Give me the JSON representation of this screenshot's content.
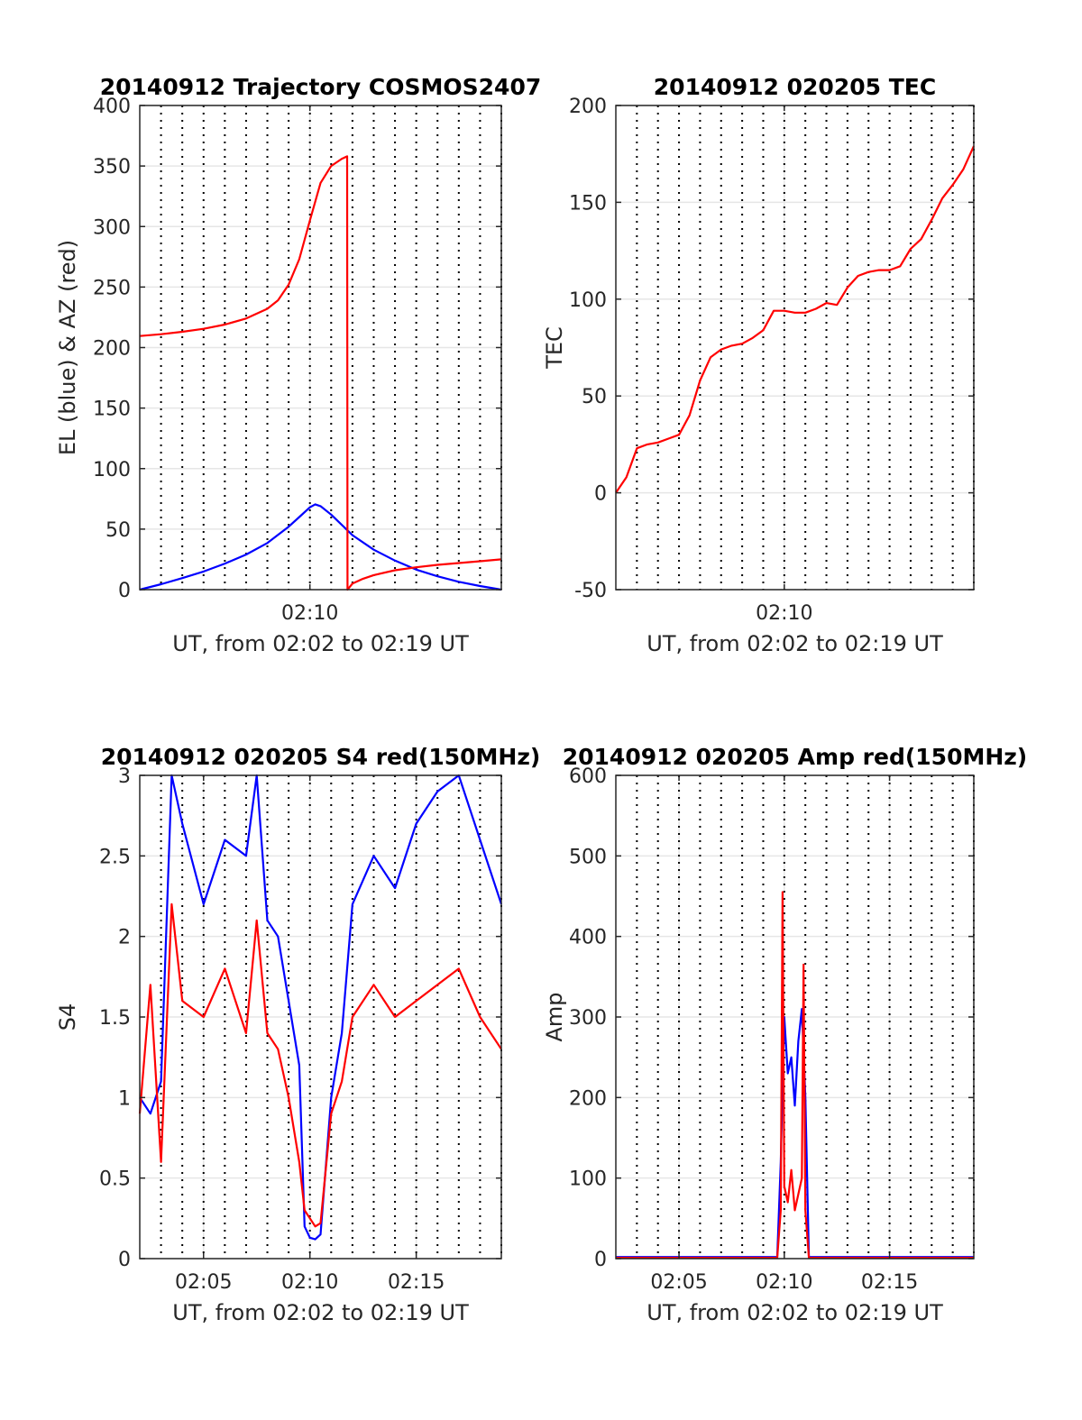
{
  "colors": {
    "el": "#0000ff",
    "az": "#ff0000",
    "s4_red": "#ff0000",
    "s4_blue": "#0000ff",
    "tec": "#ff0000",
    "amp_red": "#ff0000",
    "amp_blue": "#0000ff"
  },
  "chart_data": [
    {
      "id": "trajectory",
      "type": "line",
      "title": "20140912 Trajectory COSMOS2407",
      "xlabel": "UT, from 02:02 to 02:19 UT",
      "ylabel": "EL (blue) & AZ (red)",
      "xlim": [
        "02:02",
        "02:19"
      ],
      "ylim": [
        0,
        400
      ],
      "xticks": [
        "02:10"
      ],
      "yticks": [
        0,
        50,
        100,
        150,
        200,
        250,
        300,
        350,
        400
      ],
      "grid": true,
      "series": [
        {
          "color": "#0000ff",
          "x": [
            "02:02",
            "02:03",
            "02:04",
            "02:05",
            "02:06",
            "02:07",
            "02:08",
            "02:09",
            "02:09:30",
            "02:10",
            "02:10:15",
            "02:10:30",
            "02:11",
            "02:11:30",
            "02:12",
            "02:13",
            "02:14",
            "02:15",
            "02:16",
            "02:17",
            "02:18",
            "02:19"
          ],
          "y": [
            0,
            4.5,
            9.5,
            15,
            21.5,
            29,
            38.5,
            52,
            60,
            68,
            70.5,
            69,
            62,
            53.5,
            45,
            33,
            24,
            16.5,
            11,
            6.5,
            3,
            0
          ]
        },
        {
          "color": "#ff0000",
          "x": [
            "02:02",
            "02:03",
            "02:04",
            "02:05",
            "02:06",
            "02:07",
            "02:08",
            "02:08:30",
            "02:09",
            "02:09:30",
            "02:10",
            "02:10:30",
            "02:11",
            "02:11:30",
            "02:11:45",
            "02:11:46",
            "02:12",
            "02:12:30",
            "02:13",
            "02:14",
            "02:15",
            "02:16",
            "02:17",
            "02:18",
            "02:19"
          ],
          "y": [
            209.5,
            211,
            213,
            215.5,
            219,
            224,
            232,
            239,
            252,
            273,
            305,
            336,
            350,
            356,
            358,
            0,
            5,
            9,
            12,
            16,
            18.5,
            20.5,
            22,
            23.5,
            25
          ]
        }
      ]
    },
    {
      "id": "tec",
      "type": "line",
      "title": "20140912 020205 TEC",
      "xlabel": "UT, from 02:02 to 02:19 UT",
      "ylabel": "TEC",
      "xlim": [
        "02:02",
        "02:19"
      ],
      "ylim": [
        -50,
        200
      ],
      "xticks": [
        "02:10"
      ],
      "yticks": [
        -50,
        0,
        50,
        100,
        150,
        200
      ],
      "grid": true,
      "series": [
        {
          "color": "#ff0000",
          "x": [
            "02:02",
            "02:02:30",
            "02:03",
            "02:03:30",
            "02:04",
            "02:04:30",
            "02:05",
            "02:05:30",
            "02:06",
            "02:06:30",
            "02:07",
            "02:07:30",
            "02:08",
            "02:08:30",
            "02:09",
            "02:09:30",
            "02:10",
            "02:10:30",
            "02:11",
            "02:11:30",
            "02:12",
            "02:12:30",
            "02:13",
            "02:13:30",
            "02:14",
            "02:14:30",
            "02:15",
            "02:15:30",
            "02:16",
            "02:16:30",
            "02:17",
            "02:17:30",
            "02:18",
            "02:18:30",
            "02:19"
          ],
          "y": [
            0,
            8,
            23,
            25,
            26,
            28,
            30,
            40,
            58,
            70,
            74,
            76,
            77,
            80,
            84,
            94,
            94,
            93,
            93,
            95,
            98,
            97,
            106,
            112,
            114,
            115,
            115,
            117,
            126,
            131,
            141,
            152,
            159,
            167,
            179
          ]
        }
      ]
    },
    {
      "id": "s4",
      "type": "line",
      "title": "20140912 020205 S4 red(150MHz)",
      "xlabel": "UT, from 02:02 to 02:19 UT",
      "ylabel": "S4",
      "xlim": [
        "02:02",
        "02:19"
      ],
      "ylim": [
        0,
        3
      ],
      "xticks": [
        "02:05",
        "02:10",
        "02:15"
      ],
      "yticks": [
        0,
        0.5,
        1,
        1.5,
        2,
        2.5,
        3
      ],
      "grid": true,
      "series": [
        {
          "color": "#0000ff",
          "x": [
            "02:02",
            "02:02:30",
            "02:03",
            "02:03:30",
            "02:04",
            "02:05",
            "02:06",
            "02:07",
            "02:07:30",
            "02:08",
            "02:08:30",
            "02:09",
            "02:09:30",
            "02:09:45",
            "02:10",
            "02:10:15",
            "02:10:30",
            "02:11",
            "02:11:30",
            "02:12",
            "02:13",
            "02:14",
            "02:15",
            "02:16",
            "02:17",
            "02:18",
            "02:19"
          ],
          "y": [
            1.0,
            0.9,
            1.1,
            3.0,
            2.7,
            2.2,
            2.6,
            2.5,
            3.0,
            2.1,
            2.0,
            1.6,
            1.2,
            0.2,
            0.13,
            0.12,
            0.15,
            1.0,
            1.4,
            2.2,
            2.5,
            2.3,
            2.7,
            2.9,
            3.0,
            2.6,
            2.2
          ]
        },
        {
          "color": "#ff0000",
          "x": [
            "02:02",
            "02:02:30",
            "02:03",
            "02:03:30",
            "02:04",
            "02:05",
            "02:06",
            "02:07",
            "02:07:30",
            "02:08",
            "02:08:30",
            "02:09",
            "02:09:30",
            "02:09:45",
            "02:10",
            "02:10:15",
            "02:10:30",
            "02:11",
            "02:11:30",
            "02:12",
            "02:13",
            "02:14",
            "02:15",
            "02:16",
            "02:17",
            "02:18",
            "02:19"
          ],
          "y": [
            0.9,
            1.7,
            0.6,
            2.2,
            1.6,
            1.5,
            1.8,
            1.4,
            2.1,
            1.4,
            1.3,
            1.0,
            0.6,
            0.3,
            0.25,
            0.2,
            0.22,
            0.9,
            1.1,
            1.5,
            1.7,
            1.5,
            1.6,
            1.7,
            1.8,
            1.5,
            1.3
          ]
        }
      ]
    },
    {
      "id": "amp",
      "type": "line",
      "title": "20140912 020205 Amp red(150MHz)",
      "xlabel": "UT, from 02:02 to 02:19 UT",
      "ylabel": "Amp",
      "xlim": [
        "02:02",
        "02:19"
      ],
      "ylim": [
        0,
        600
      ],
      "xticks": [
        "02:05",
        "02:10",
        "02:15"
      ],
      "yticks": [
        0,
        100,
        200,
        300,
        400,
        500,
        600
      ],
      "grid": true,
      "series": [
        {
          "color": "#0000ff",
          "x": [
            "02:02",
            "02:09",
            "02:09:40",
            "02:09:50",
            "02:10",
            "02:10:10",
            "02:10:20",
            "02:10:30",
            "02:10:40",
            "02:10:50",
            "02:11",
            "02:11:10",
            "02:12",
            "02:19"
          ],
          "y": [
            2,
            2,
            2,
            120,
            300,
            230,
            250,
            190,
            270,
            310,
            200,
            2,
            2,
            2
          ]
        },
        {
          "color": "#ff0000",
          "x": [
            "02:02",
            "02:09",
            "02:09:40",
            "02:09:50",
            "02:09:55",
            "02:10",
            "02:10:10",
            "02:10:20",
            "02:10:30",
            "02:10:40",
            "02:10:50",
            "02:10:55",
            "02:11",
            "02:11:10",
            "02:12",
            "02:19"
          ],
          "y": [
            1,
            1,
            1,
            60,
            455,
            90,
            70,
            110,
            60,
            80,
            100,
            365,
            60,
            1,
            1,
            1
          ]
        }
      ]
    }
  ]
}
